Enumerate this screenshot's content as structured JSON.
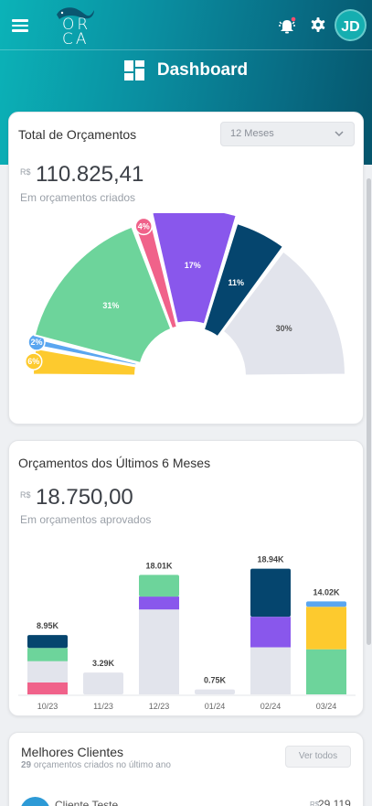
{
  "header": {
    "logo_text_top": "OR",
    "logo_text_bottom": "CA",
    "page_title": "Dashboard",
    "avatar_initials": "JD",
    "icons": [
      "menu-icon",
      "alarm-bell-icon",
      "gear-icon",
      "dashboard-grid-icon"
    ],
    "notification_dot_color": "#ff4d6d"
  },
  "card_total": {
    "title": "Total de Orçamentos",
    "period_select": "12 Meses",
    "currency": "R$",
    "amount": "110.825,41",
    "subtitle": "Em orçamentos criados",
    "chart_data": {
      "type": "pie",
      "style": "semi-donut",
      "slices": [
        {
          "label": "6%",
          "value": 6,
          "color": "#fdca2e"
        },
        {
          "label": "2%",
          "value": 2,
          "color": "#5aa6f0"
        },
        {
          "label": "31%",
          "value": 31,
          "color": "#6dd49b"
        },
        {
          "label": "4%",
          "value": 4,
          "color": "#f0628a"
        },
        {
          "label": "17%",
          "value": 17,
          "color": "#8957ec"
        },
        {
          "label": "11%",
          "value": 11,
          "color": "#05456e"
        },
        {
          "label": "30%",
          "value": 30,
          "color": "#e2e4ec"
        }
      ]
    }
  },
  "card_months": {
    "title": "Orçamentos dos Últimos 6 Meses",
    "currency": "R$",
    "amount": "18.750,00",
    "subtitle": "Em orçamentos aprovados",
    "chart_data": {
      "type": "bar",
      "stacked": true,
      "categories": [
        "10/23",
        "11/23",
        "12/23",
        "01/24",
        "02/24",
        "03/24"
      ],
      "totals_labels": [
        "8.95K",
        "3.29K",
        "18.01K",
        "0.75K",
        "18.94K",
        "14.02K"
      ],
      "ylim": [
        0,
        20
      ],
      "stacks": [
        [
          {
            "value": 1.8,
            "color": "#f0628a"
          },
          {
            "value": 3.2,
            "color": "#e2e4ec"
          },
          {
            "value": 2.0,
            "color": "#6dd49b"
          },
          {
            "value": 1.95,
            "color": "#05456e"
          }
        ],
        [
          {
            "value": 3.29,
            "color": "#e2e4ec"
          }
        ],
        [
          {
            "value": 12.8,
            "color": "#e2e4ec"
          },
          {
            "value": 1.95,
            "color": "#8957ec"
          },
          {
            "value": 3.26,
            "color": "#6dd49b"
          }
        ],
        [
          {
            "value": 0.75,
            "color": "#e2e4ec"
          }
        ],
        [
          {
            "value": 7.1,
            "color": "#e2e4ec"
          },
          {
            "value": 4.6,
            "color": "#8957ec"
          },
          {
            "value": 7.24,
            "color": "#05456e"
          }
        ],
        [
          {
            "value": 6.8,
            "color": "#6dd49b"
          },
          {
            "value": 6.4,
            "color": "#fdca2e"
          },
          {
            "value": 0.82,
            "color": "#5aa6f0"
          }
        ]
      ]
    }
  },
  "card_clients": {
    "title": "Melhores Clientes",
    "count": "29",
    "subtitle_rest": " orçamentos criados no último ano",
    "button_label": "Ver todos",
    "first_client_name": "Cliente Teste",
    "first_client_currency": "R$",
    "first_client_value": "29.119"
  }
}
